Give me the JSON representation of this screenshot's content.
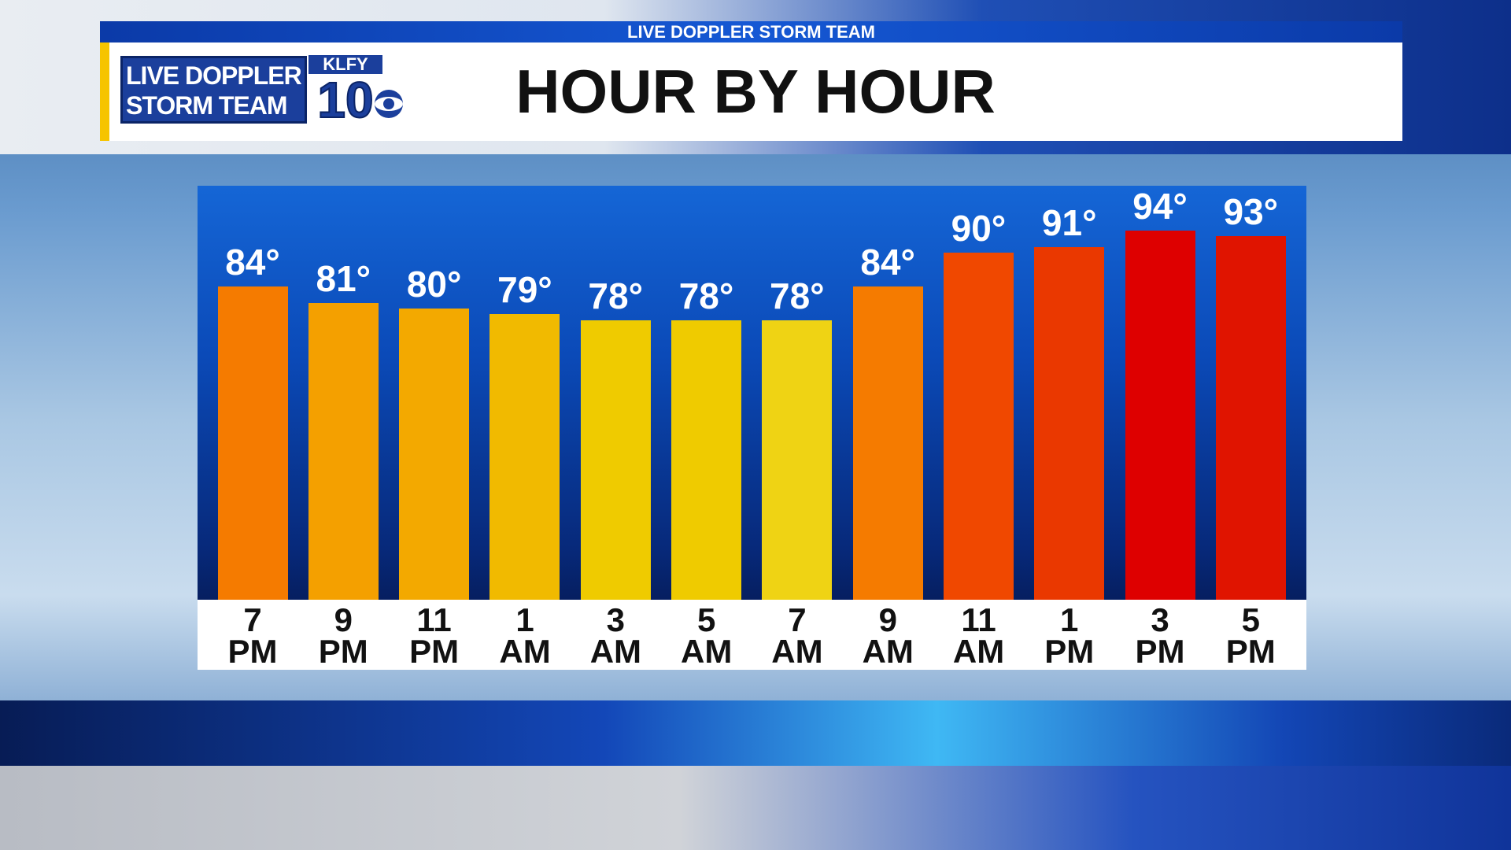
{
  "banner": "LIVE DOPPLER STORM TEAM",
  "logo": {
    "line1": "LIVE DOPPLER",
    "line2": "STORM TEAM",
    "station": "KLFY",
    "channel": "10"
  },
  "chart_data": {
    "type": "bar",
    "title": "HOUR BY HOUR",
    "categories": [
      "7 PM",
      "9 PM",
      "11 PM",
      "1 AM",
      "3 AM",
      "5 AM",
      "7 AM",
      "9 AM",
      "11 AM",
      "1 PM",
      "3 PM",
      "5 PM"
    ],
    "values": [
      84,
      81,
      80,
      79,
      78,
      78,
      78,
      84,
      90,
      91,
      94,
      93
    ],
    "value_labels": [
      "84°",
      "81°",
      "80°",
      "79°",
      "78°",
      "78°",
      "78°",
      "84°",
      "90°",
      "91°",
      "94°",
      "93°"
    ],
    "colors": [
      "#f57b00",
      "#f4a000",
      "#f3a900",
      "#f1ba00",
      "#efcb00",
      "#efcb00",
      "#efd314",
      "#f57b00",
      "#f04800",
      "#ea3800",
      "#de0000",
      "#e01400"
    ],
    "ylim": [
      28,
      102
    ]
  }
}
